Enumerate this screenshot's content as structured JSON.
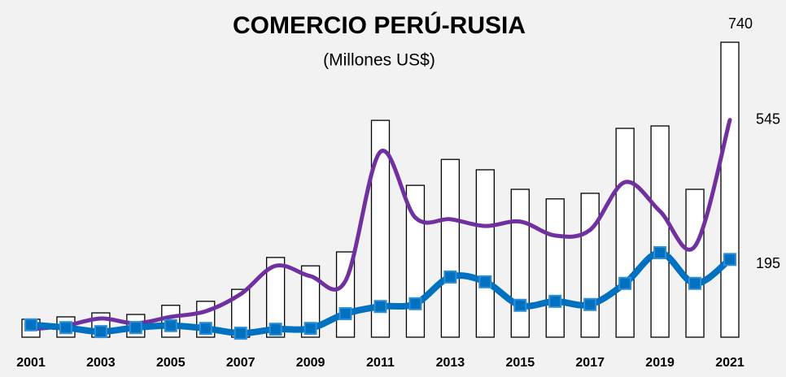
{
  "chart_data": {
    "type": "bar",
    "title": "COMERCIO PERÚ-RUSIA",
    "subtitle": "(Millones US$)",
    "categories": [
      "2001",
      null,
      "2003",
      null,
      "2005",
      null,
      "2007",
      null,
      "2009",
      null,
      "2011",
      null,
      "2013",
      null,
      "2015",
      null,
      "2017",
      null,
      "2019",
      null,
      "2021"
    ],
    "series": [
      {
        "type": "bar",
        "color": "#ffffff",
        "values": [
          45,
          51,
          61,
          57,
          80,
          90,
          120,
          200,
          179,
          214,
          544,
          381,
          446,
          420,
          371,
          347,
          361,
          524,
          530,
          371,
          740
        ]
      },
      {
        "type": "line",
        "color": "#7030a0",
        "values": [
          20,
          29,
          47,
          35,
          51,
          65,
          108,
          179,
          153,
          141,
          465,
          300,
          296,
          279,
          290,
          255,
          269,
          389,
          316,
          228,
          545
        ]
      },
      {
        "type": "line",
        "color": "#0070c0",
        "values": [
          31,
          24,
          14,
          24,
          29,
          22,
          10,
          20,
          22,
          59,
          77,
          84,
          151,
          139,
          80,
          90,
          82,
          135,
          212,
          135,
          195
        ]
      }
    ]
  }
}
